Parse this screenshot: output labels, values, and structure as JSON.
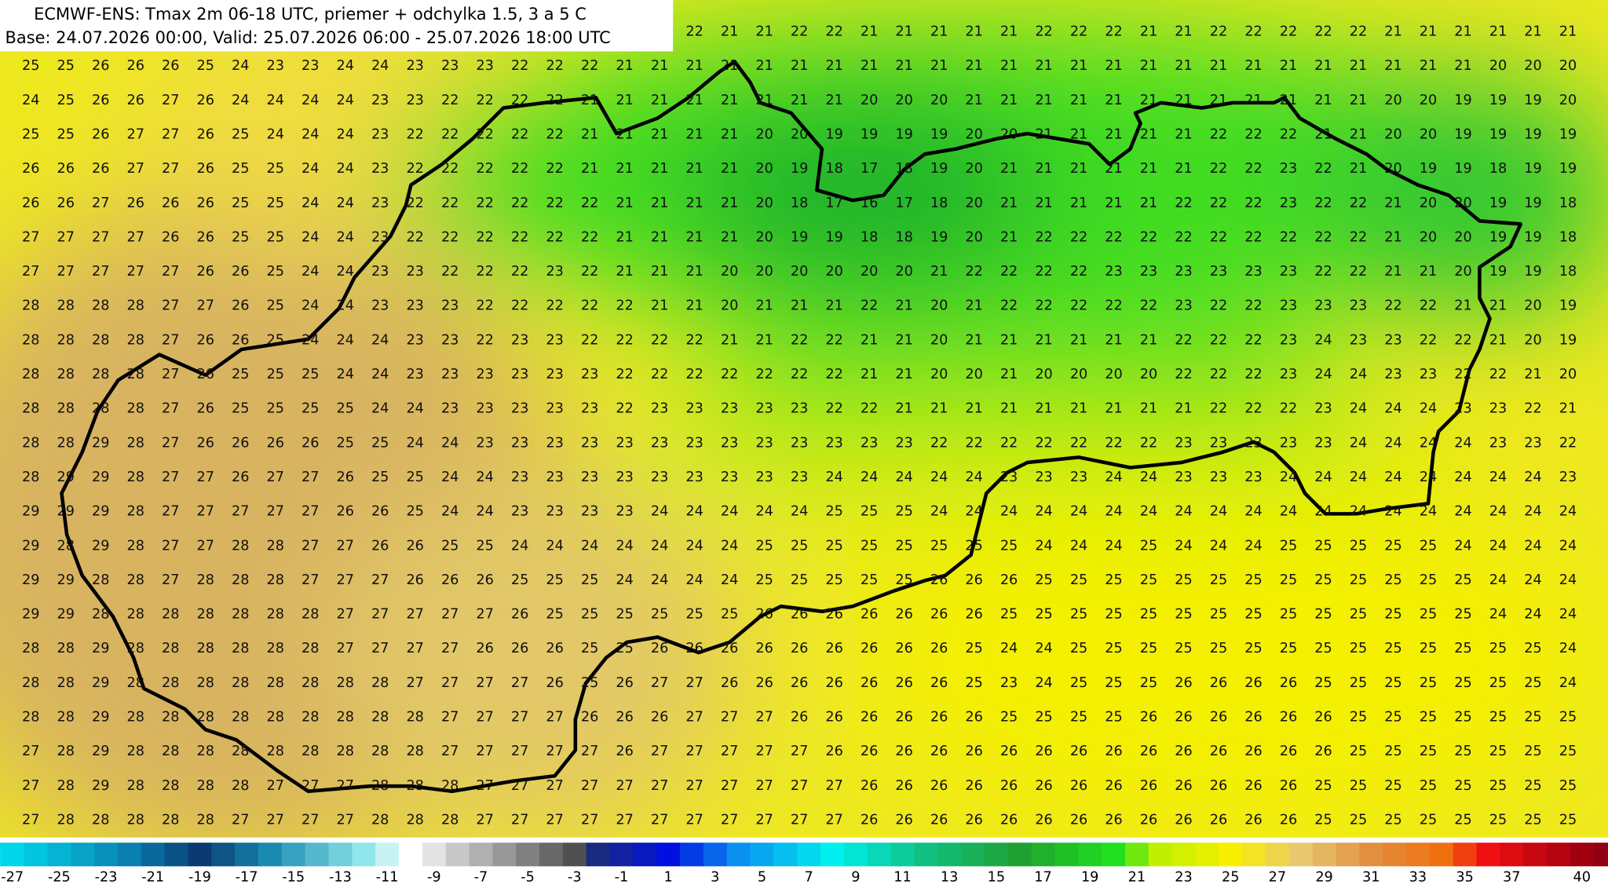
{
  "header": {
    "title_line1": "ECMWF-ENS: Tmax 2m 06-18 UTC, priemer + odchylka 1.5, 3 a 5 C",
    "title_line2": "Base: 24.07.2026 00:00, Valid: 25.07.2026 06:00 - 25.07.2026 18:00 UTC"
  },
  "grid": {
    "rows": [
      [
        22,
        21,
        21,
        22,
        22,
        21,
        21,
        21,
        21,
        21,
        22,
        22,
        22,
        21,
        21,
        22,
        22,
        22,
        22,
        22,
        21,
        21,
        21,
        21,
        21,
        21
      ],
      [
        25,
        25,
        26,
        26,
        26,
        25,
        24,
        23,
        23,
        24,
        24,
        23,
        23,
        23,
        22,
        22,
        22,
        21,
        21,
        21,
        21,
        21,
        21,
        21,
        21,
        21,
        21,
        21,
        21,
        21,
        21,
        21,
        21,
        21,
        21,
        21,
        21,
        21,
        21,
        21,
        21,
        21,
        20,
        20,
        20
      ],
      [
        24,
        25,
        26,
        26,
        27,
        26,
        24,
        24,
        24,
        24,
        23,
        23,
        22,
        22,
        22,
        22,
        21,
        21,
        21,
        21,
        21,
        21,
        21,
        21,
        20,
        20,
        20,
        21,
        21,
        21,
        21,
        21,
        21,
        21,
        21,
        21,
        21,
        21,
        21,
        20,
        20,
        19,
        19,
        19,
        20
      ],
      [
        25,
        25,
        26,
        27,
        27,
        26,
        25,
        24,
        24,
        24,
        23,
        22,
        22,
        22,
        22,
        22,
        21,
        21,
        21,
        21,
        21,
        20,
        20,
        19,
        19,
        19,
        19,
        20,
        20,
        21,
        21,
        21,
        21,
        21,
        22,
        22,
        22,
        21,
        21,
        20,
        20,
        19,
        19,
        19,
        19
      ],
      [
        26,
        26,
        26,
        27,
        27,
        26,
        25,
        25,
        24,
        24,
        23,
        22,
        22,
        22,
        22,
        22,
        21,
        21,
        21,
        21,
        21,
        20,
        19,
        18,
        17,
        18,
        19,
        20,
        21,
        21,
        21,
        21,
        21,
        21,
        22,
        22,
        23,
        22,
        21,
        20,
        19,
        19,
        18,
        19,
        19
      ],
      [
        26,
        26,
        27,
        26,
        26,
        26,
        25,
        25,
        24,
        24,
        23,
        22,
        22,
        22,
        22,
        22,
        22,
        21,
        21,
        21,
        21,
        20,
        18,
        17,
        16,
        17,
        18,
        20,
        21,
        21,
        21,
        21,
        21,
        22,
        22,
        22,
        23,
        22,
        22,
        21,
        20,
        20,
        19,
        19,
        18
      ],
      [
        27,
        27,
        27,
        27,
        26,
        26,
        25,
        25,
        24,
        24,
        23,
        22,
        22,
        22,
        22,
        22,
        22,
        21,
        21,
        21,
        21,
        20,
        19,
        19,
        18,
        18,
        19,
        20,
        21,
        22,
        22,
        22,
        22,
        22,
        22,
        22,
        22,
        22,
        22,
        21,
        20,
        20,
        19,
        19,
        18
      ],
      [
        27,
        27,
        27,
        27,
        27,
        26,
        26,
        25,
        24,
        24,
        23,
        23,
        22,
        22,
        22,
        23,
        22,
        21,
        21,
        21,
        20,
        20,
        20,
        20,
        20,
        20,
        21,
        22,
        22,
        22,
        22,
        23,
        23,
        23,
        23,
        23,
        23,
        22,
        22,
        21,
        21,
        20,
        19,
        19,
        18
      ],
      [
        28,
        28,
        28,
        28,
        27,
        27,
        26,
        25,
        24,
        24,
        23,
        23,
        23,
        22,
        22,
        22,
        22,
        22,
        21,
        21,
        20,
        21,
        21,
        21,
        22,
        21,
        20,
        21,
        22,
        22,
        22,
        22,
        22,
        23,
        22,
        22,
        23,
        23,
        23,
        22,
        22,
        21,
        21,
        20,
        19
      ],
      [
        28,
        28,
        28,
        28,
        27,
        26,
        26,
        25,
        24,
        24,
        24,
        23,
        23,
        22,
        23,
        23,
        22,
        22,
        22,
        22,
        21,
        21,
        22,
        22,
        21,
        21,
        20,
        21,
        21,
        21,
        21,
        21,
        21,
        22,
        22,
        22,
        23,
        24,
        23,
        23,
        22,
        22,
        21,
        20,
        19
      ],
      [
        28,
        28,
        28,
        28,
        27,
        26,
        25,
        25,
        25,
        24,
        24,
        23,
        23,
        23,
        23,
        23,
        23,
        22,
        22,
        22,
        22,
        22,
        22,
        22,
        21,
        21,
        20,
        20,
        21,
        20,
        20,
        20,
        20,
        22,
        22,
        22,
        23,
        24,
        24,
        23,
        23,
        22,
        22,
        21,
        20
      ],
      [
        28,
        28,
        28,
        28,
        27,
        26,
        25,
        25,
        25,
        25,
        24,
        24,
        23,
        23,
        23,
        23,
        23,
        22,
        23,
        23,
        23,
        23,
        23,
        22,
        22,
        21,
        21,
        21,
        21,
        21,
        21,
        21,
        21,
        21,
        22,
        22,
        22,
        23,
        24,
        24,
        24,
        23,
        23,
        22,
        21
      ],
      [
        28,
        28,
        29,
        28,
        27,
        26,
        26,
        26,
        26,
        25,
        25,
        24,
        24,
        23,
        23,
        23,
        23,
        23,
        23,
        23,
        23,
        23,
        23,
        23,
        23,
        23,
        22,
        22,
        22,
        22,
        22,
        22,
        22,
        23,
        23,
        23,
        23,
        23,
        24,
        24,
        24,
        24,
        23,
        23,
        22
      ],
      [
        28,
        29,
        29,
        28,
        27,
        27,
        26,
        27,
        27,
        26,
        25,
        25,
        24,
        24,
        23,
        23,
        23,
        23,
        23,
        23,
        23,
        23,
        23,
        24,
        24,
        24,
        24,
        24,
        23,
        23,
        23,
        24,
        24,
        23,
        23,
        23,
        24,
        24,
        24,
        24,
        24,
        24,
        24,
        24,
        23
      ],
      [
        29,
        29,
        29,
        28,
        27,
        27,
        27,
        27,
        27,
        26,
        26,
        25,
        24,
        24,
        23,
        23,
        23,
        23,
        24,
        24,
        24,
        24,
        24,
        25,
        25,
        25,
        24,
        24,
        24,
        24,
        24,
        24,
        24,
        24,
        24,
        24,
        24,
        24,
        24,
        24,
        24,
        24,
        24,
        24,
        24
      ],
      [
        29,
        28,
        29,
        28,
        27,
        27,
        28,
        28,
        27,
        27,
        26,
        26,
        25,
        25,
        24,
        24,
        24,
        24,
        24,
        24,
        24,
        25,
        25,
        25,
        25,
        25,
        25,
        25,
        25,
        24,
        24,
        24,
        25,
        24,
        24,
        24,
        25,
        25,
        25,
        25,
        25,
        24,
        24,
        24,
        24
      ],
      [
        29,
        29,
        28,
        28,
        27,
        28,
        28,
        28,
        27,
        27,
        27,
        26,
        26,
        26,
        25,
        25,
        25,
        24,
        24,
        24,
        24,
        25,
        25,
        25,
        25,
        25,
        26,
        26,
        26,
        25,
        25,
        25,
        25,
        25,
        25,
        25,
        25,
        25,
        25,
        25,
        25,
        25,
        24,
        24,
        24
      ],
      [
        29,
        29,
        28,
        28,
        28,
        28,
        28,
        28,
        28,
        27,
        27,
        27,
        27,
        27,
        26,
        25,
        25,
        25,
        25,
        25,
        25,
        26,
        26,
        26,
        26,
        26,
        26,
        26,
        25,
        25,
        25,
        25,
        25,
        25,
        25,
        25,
        25,
        25,
        25,
        25,
        25,
        25,
        24,
        24,
        24
      ],
      [
        28,
        28,
        29,
        28,
        28,
        28,
        28,
        28,
        28,
        27,
        27,
        27,
        27,
        26,
        26,
        26,
        25,
        25,
        26,
        26,
        26,
        26,
        26,
        26,
        26,
        26,
        26,
        25,
        24,
        24,
        25,
        25,
        25,
        25,
        25,
        25,
        25,
        25,
        25,
        25,
        25,
        25,
        25,
        25,
        24
      ],
      [
        28,
        28,
        29,
        28,
        28,
        28,
        28,
        28,
        28,
        28,
        28,
        27,
        27,
        27,
        27,
        26,
        25,
        26,
        27,
        27,
        26,
        26,
        26,
        26,
        26,
        26,
        26,
        25,
        23,
        24,
        25,
        25,
        25,
        26,
        26,
        26,
        26,
        25,
        25,
        25,
        25,
        25,
        25,
        25,
        24
      ],
      [
        28,
        28,
        29,
        28,
        28,
        28,
        28,
        28,
        28,
        28,
        28,
        28,
        27,
        27,
        27,
        27,
        26,
        26,
        26,
        27,
        27,
        27,
        26,
        26,
        26,
        26,
        26,
        26,
        25,
        25,
        25,
        25,
        26,
        26,
        26,
        26,
        26,
        26,
        25,
        25,
        25,
        25,
        25,
        25,
        25
      ],
      [
        27,
        28,
        29,
        28,
        28,
        28,
        28,
        28,
        28,
        28,
        28,
        28,
        27,
        27,
        27,
        27,
        27,
        26,
        27,
        27,
        27,
        27,
        27,
        26,
        26,
        26,
        26,
        26,
        26,
        26,
        26,
        26,
        26,
        26,
        26,
        26,
        26,
        26,
        25,
        25,
        25,
        25,
        25,
        25,
        25
      ],
      [
        27,
        28,
        29,
        28,
        28,
        28,
        28,
        27,
        27,
        27,
        28,
        28,
        28,
        27,
        27,
        27,
        27,
        27,
        27,
        27,
        27,
        27,
        27,
        27,
        26,
        26,
        26,
        26,
        26,
        26,
        26,
        26,
        26,
        26,
        26,
        26,
        26,
        25,
        25,
        25,
        25,
        25,
        25,
        25,
        25
      ],
      [
        27,
        28,
        28,
        28,
        28,
        28,
        27,
        27,
        27,
        27,
        28,
        28,
        28,
        27,
        27,
        27,
        27,
        27,
        27,
        27,
        27,
        27,
        27,
        27,
        26,
        26,
        26,
        26,
        26,
        26,
        26,
        26,
        26,
        26,
        26,
        26,
        26,
        25,
        25,
        25,
        25,
        25,
        25,
        25,
        25
      ]
    ]
  },
  "colorbar": {
    "labels": [
      -27,
      -25,
      -23,
      -21,
      -19,
      -17,
      -15,
      -13,
      -11,
      -9,
      -7,
      -5,
      -3,
      -1,
      1,
      3,
      5,
      7,
      9,
      11,
      13,
      15,
      17,
      19,
      21,
      23,
      25,
      27,
      29,
      31,
      33,
      35,
      37,
      40
    ]
  }
}
